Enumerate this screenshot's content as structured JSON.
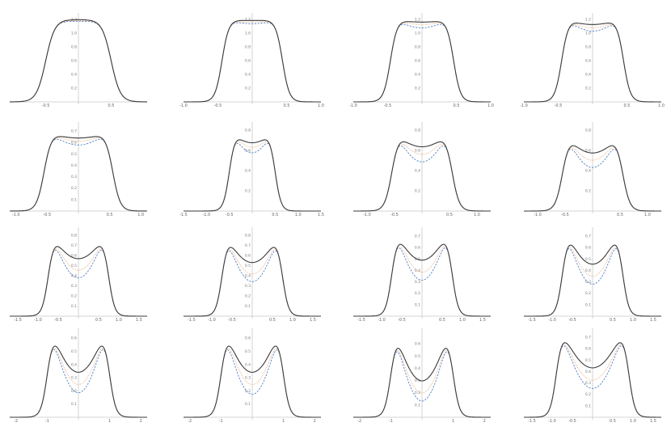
{
  "colors": {
    "solid": "#3a3a3a",
    "dotted": "#e8a06a",
    "dashed": "#4f7fc4",
    "axis": "#c8c8c8"
  },
  "chart_data": [
    {
      "type": "line",
      "xlim": [
        -1.05,
        1.05
      ],
      "ylim": [
        0,
        1.25
      ],
      "xticks": [
        "-0.5",
        "0.5"
      ],
      "yticks": [
        "0.2",
        "0.4",
        "0.6",
        "0.8",
        "1.0",
        "1.2"
      ],
      "series": [
        {
          "style": "dashed",
          "a": 0.02
        },
        {
          "style": "dotted",
          "a": 0.01
        },
        {
          "style": "solid",
          "a": 0.0
        }
      ],
      "params": {
        "c": 0.5,
        "w": 0.14,
        "amp": 1.2
      }
    },
    {
      "type": "line",
      "xlim": [
        -1.0,
        1.0
      ],
      "ylim": [
        0,
        1.25
      ],
      "xticks": [
        "-1.0",
        "-0.5",
        "0.5",
        "1.0"
      ],
      "yticks": [
        "0.2",
        "0.4",
        "0.6",
        "0.8",
        "1.0",
        "1.2"
      ],
      "series": [
        {
          "style": "dashed",
          "a": 0.05
        },
        {
          "style": "dotted",
          "a": 0.03
        },
        {
          "style": "solid",
          "a": 0.01
        }
      ],
      "params": {
        "c": 0.44,
        "w": 0.1,
        "amp": 1.2
      }
    },
    {
      "type": "line",
      "xlim": [
        -1.0,
        1.0
      ],
      "ylim": [
        0,
        1.25
      ],
      "xticks": [
        "-1.0",
        "-0.5",
        "0.5",
        "1.0"
      ],
      "yticks": [
        "0.2",
        "0.4",
        "0.6",
        "0.8",
        "1.0",
        "1.2"
      ],
      "series": [
        {
          "style": "dashed",
          "a": 0.1
        },
        {
          "style": "dotted",
          "a": 0.06
        },
        {
          "style": "solid",
          "a": 0.03
        }
      ],
      "params": {
        "c": 0.46,
        "w": 0.1,
        "amp": 1.2
      }
    },
    {
      "type": "line",
      "xlim": [
        -1.0,
        1.0
      ],
      "ylim": [
        0,
        1.25
      ],
      "xticks": [
        "-1.0",
        "-0.5",
        "0.5",
        "1.0"
      ],
      "yticks": [
        "0.2",
        "0.4",
        "0.6",
        "0.8",
        "1.0",
        "1.2"
      ],
      "series": [
        {
          "style": "dashed",
          "a": 0.14
        },
        {
          "style": "dotted",
          "a": 0.1
        },
        {
          "style": "solid",
          "a": 0.06
        }
      ],
      "params": {
        "c": 0.45,
        "w": 0.1,
        "amp": 1.2
      }
    },
    {
      "type": "line",
      "xlim": [
        -1.1,
        1.1
      ],
      "ylim": [
        0,
        0.75
      ],
      "xticks": [
        "-1.0",
        "-0.5",
        "0.5",
        "1.0"
      ],
      "yticks": [
        "0.1",
        "0.2",
        "0.3",
        "0.4",
        "0.5",
        "0.6",
        "0.7"
      ],
      "series": [
        {
          "style": "dashed",
          "a": 0.15
        },
        {
          "style": "dotted",
          "a": 0.1
        },
        {
          "style": "solid",
          "a": 0.06
        }
      ],
      "params": {
        "c": 0.55,
        "w": 0.12,
        "amp": 0.68
      }
    },
    {
      "type": "line",
      "xlim": [
        -1.5,
        1.5
      ],
      "ylim": [
        0,
        0.85
      ],
      "xticks": [
        "-1.5",
        "-1.0",
        "-0.5",
        "0.5",
        "1.0",
        "1.5"
      ],
      "yticks": [
        "0.2",
        "0.4",
        "0.6",
        "0.8"
      ],
      "series": [
        {
          "style": "dashed",
          "a": 0.25
        },
        {
          "style": "dotted",
          "a": 0.18
        },
        {
          "style": "solid",
          "a": 0.12
        }
      ],
      "params": {
        "c": 0.5,
        "w": 0.13,
        "amp": 0.77
      }
    },
    {
      "type": "line",
      "xlim": [
        -1.25,
        1.25
      ],
      "ylim": [
        0,
        0.85
      ],
      "xticks": [
        "-1.0",
        "-0.5",
        "0.5",
        "1.0"
      ],
      "yticks": [
        "0.2",
        "0.4",
        "0.6",
        "0.8"
      ],
      "series": [
        {
          "style": "dashed",
          "a": 0.35
        },
        {
          "style": "dotted",
          "a": 0.25
        },
        {
          "style": "solid",
          "a": 0.15
        }
      ],
      "params": {
        "c": 0.55,
        "w": 0.13,
        "amp": 0.75
      }
    },
    {
      "type": "line",
      "xlim": [
        -1.25,
        1.25
      ],
      "ylim": [
        0,
        0.85
      ],
      "xticks": [
        "-1.0",
        "-0.5",
        "0.5",
        "1.0"
      ],
      "yticks": [
        "0.2",
        "0.4",
        "0.6",
        "0.8"
      ],
      "series": [
        {
          "style": "dashed",
          "a": 0.4
        },
        {
          "style": "dotted",
          "a": 0.3
        },
        {
          "style": "solid",
          "a": 0.2
        }
      ],
      "params": {
        "c": 0.55,
        "w": 0.13,
        "amp": 0.72
      }
    },
    {
      "type": "line",
      "xlim": [
        -1.7,
        1.7
      ],
      "ylim": [
        0,
        0.85
      ],
      "xticks": [
        "-1.5",
        "-1.0",
        "-0.5",
        "0.5",
        "1.0",
        "1.5"
      ],
      "yticks": [
        "0.1",
        "0.2",
        "0.3",
        "0.4",
        "0.5",
        "0.6",
        "0.7",
        "0.8"
      ],
      "series": [
        {
          "style": "dashed",
          "a": 0.5
        },
        {
          "style": "dotted",
          "a": 0.4
        },
        {
          "style": "solid",
          "a": 0.25
        }
      ],
      "params": {
        "c": 0.75,
        "w": 0.15,
        "amp": 0.76
      }
    },
    {
      "type": "line",
      "xlim": [
        -1.7,
        1.7
      ],
      "ylim": [
        0,
        0.85
      ],
      "xticks": [
        "-1.5",
        "-1.0",
        "-0.5",
        "0.5",
        "1.0",
        "1.5"
      ],
      "yticks": [
        "0.1",
        "0.2",
        "0.3",
        "0.4",
        "0.5",
        "0.6",
        "0.7",
        "0.8"
      ],
      "series": [
        {
          "style": "dashed",
          "a": 0.55
        },
        {
          "style": "dotted",
          "a": 0.45
        },
        {
          "style": "solid",
          "a": 0.3
        }
      ],
      "params": {
        "c": 0.75,
        "w": 0.15,
        "amp": 0.76
      }
    },
    {
      "type": "line",
      "xlim": [
        -1.7,
        1.7
      ],
      "ylim": [
        0,
        0.75
      ],
      "xticks": [
        "-1.5",
        "-1.0",
        "-0.5",
        "0.5",
        "1.0",
        "1.5"
      ],
      "yticks": [
        "0.1",
        "0.2",
        "0.3",
        "0.4",
        "0.5",
        "0.6",
        "0.7"
      ],
      "series": [
        {
          "style": "dashed",
          "a": 0.55
        },
        {
          "style": "dotted",
          "a": 0.45
        },
        {
          "style": "solid",
          "a": 0.3
        }
      ],
      "params": {
        "c": 0.75,
        "w": 0.15,
        "amp": 0.7
      }
    },
    {
      "type": "line",
      "xlim": [
        -1.7,
        1.7
      ],
      "ylim": [
        0,
        0.75
      ],
      "xticks": [
        "-1.5",
        "-1.0",
        "-0.5",
        "0.5",
        "1.0",
        "1.5"
      ],
      "yticks": [
        "0.1",
        "0.2",
        "0.3",
        "0.4",
        "0.5",
        "0.6",
        "0.7"
      ],
      "series": [
        {
          "style": "dashed",
          "a": 0.6
        },
        {
          "style": "dotted",
          "a": 0.5
        },
        {
          "style": "solid",
          "a": 0.35
        }
      ],
      "params": {
        "c": 0.75,
        "w": 0.15,
        "amp": 0.7
      }
    },
    {
      "type": "line",
      "xlim": [
        -2.2,
        2.2
      ],
      "ylim": [
        0,
        0.65
      ],
      "xticks": [
        "-2",
        "-1",
        "1",
        "2"
      ],
      "yticks": [
        "0.1",
        "0.2",
        "0.3",
        "0.4",
        "0.5",
        "0.6"
      ],
      "series": [
        {
          "style": "dashed",
          "a": 0.7
        },
        {
          "style": "dotted",
          "a": 0.6
        },
        {
          "style": "solid",
          "a": 0.45
        }
      ],
      "params": {
        "c": 1.0,
        "w": 0.2,
        "amp": 0.62
      }
    },
    {
      "type": "line",
      "xlim": [
        -2.2,
        2.2
      ],
      "ylim": [
        0,
        0.65
      ],
      "xticks": [
        "-2",
        "-1",
        "1",
        "2"
      ],
      "yticks": [
        "0.1",
        "0.2",
        "0.3",
        "0.4",
        "0.5",
        "0.6"
      ],
      "series": [
        {
          "style": "dashed",
          "a": 0.72
        },
        {
          "style": "dotted",
          "a": 0.6
        },
        {
          "style": "solid",
          "a": 0.45
        }
      ],
      "params": {
        "c": 1.0,
        "w": 0.2,
        "amp": 0.62
      }
    },
    {
      "type": "line",
      "xlim": [
        -2.2,
        2.2
      ],
      "ylim": [
        0,
        0.7
      ],
      "xticks": [
        "-2",
        "-1",
        "1",
        "2"
      ],
      "yticks": [
        "0.1",
        "0.2",
        "0.3",
        "0.4",
        "0.5",
        "0.6"
      ],
      "series": [
        {
          "style": "dashed",
          "a": 0.8
        },
        {
          "style": "dotted",
          "a": 0.7
        },
        {
          "style": "solid",
          "a": 0.55
        }
      ],
      "params": {
        "c": 1.0,
        "w": 0.2,
        "amp": 0.66
      }
    },
    {
      "type": "line",
      "xlim": [
        -1.7,
        1.7
      ],
      "ylim": [
        0,
        0.75
      ],
      "xticks": [
        "-1.5",
        "-1.0",
        "-0.5",
        "0.5",
        "1.0",
        "1.5"
      ],
      "yticks": [
        "0.1",
        "0.2",
        "0.3",
        "0.4",
        "0.5",
        "0.6",
        "0.7"
      ],
      "series": [
        {
          "style": "dashed",
          "a": 0.65
        },
        {
          "style": "dotted",
          "a": 0.55
        },
        {
          "style": "solid",
          "a": 0.4
        }
      ],
      "params": {
        "c": 0.9,
        "w": 0.15,
        "amp": 0.72
      }
    }
  ]
}
